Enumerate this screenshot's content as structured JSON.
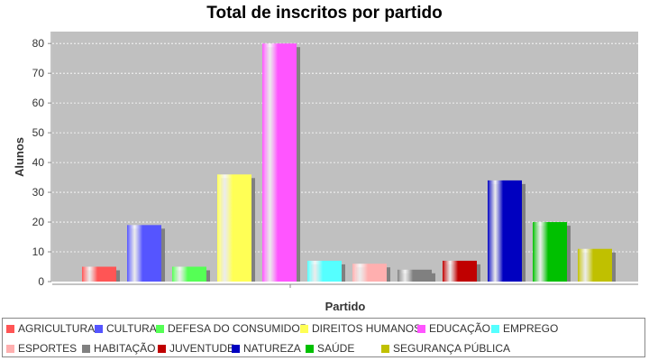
{
  "chart_data": {
    "type": "bar",
    "title": "Total de inscritos por partido",
    "xlabel": "Partido",
    "ylabel": "Alunos",
    "ylim": [
      0,
      84
    ],
    "yticks": [
      0,
      10,
      20,
      30,
      40,
      50,
      60,
      70,
      80
    ],
    "grid": true,
    "legend_position": "bottom",
    "series": [
      {
        "name": "AGRICULTURA",
        "value": 5,
        "color": "#ff5555"
      },
      {
        "name": "CULTURA",
        "value": 19,
        "color": "#5555ff"
      },
      {
        "name": "DEFESA DO CONSUMIDOR",
        "value": 5,
        "color": "#55ff55"
      },
      {
        "name": "DIREITOS HUMANOS",
        "value": 36,
        "color": "#ffff55"
      },
      {
        "name": "EDUCAÇÃO",
        "value": 80,
        "color": "#ff55ff"
      },
      {
        "name": "EMPREGO",
        "value": 7,
        "color": "#55ffff"
      },
      {
        "name": "ESPORTES",
        "value": 6,
        "color": "#ffafaf"
      },
      {
        "name": "HABITAÇÃO",
        "value": 4,
        "color": "#808080"
      },
      {
        "name": "JUVENTUDE",
        "value": 7,
        "color": "#c00000"
      },
      {
        "name": "NATUREZA",
        "value": 34,
        "color": "#0000c0"
      },
      {
        "name": "SAÚDE",
        "value": 20,
        "color": "#00c000"
      },
      {
        "name": "SEGURANÇA PÚBLICA",
        "value": 11,
        "color": "#c0c000"
      }
    ]
  }
}
